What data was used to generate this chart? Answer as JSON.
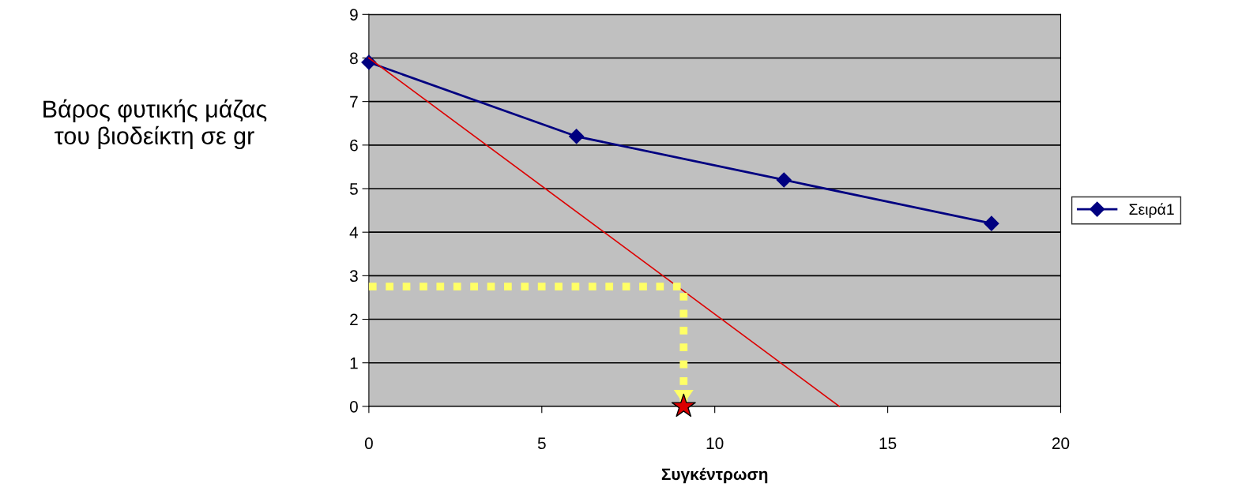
{
  "chart_data": {
    "type": "line",
    "xlabel": "Συγκέντρωση",
    "ylabel": "Βάρος φυτικής μάζας\nτου βιοδείκτη σε gr",
    "x": [
      0,
      6,
      12,
      18
    ],
    "series": [
      {
        "name": "Σειρά1",
        "color": "#000080",
        "values": [
          7.9,
          6.2,
          5.2,
          4.2
        ],
        "marker": "diamond"
      },
      {
        "type": "line",
        "color": "#dd0000",
        "x": [
          0,
          13.6
        ],
        "values": [
          8,
          0
        ],
        "marker": "none"
      },
      {
        "type": "line",
        "color": "#ffff66",
        "x": [
          0,
          9.1,
          9.1
        ],
        "values": [
          2.75,
          2.75,
          0
        ],
        "marker": "none",
        "line_style": "dotted"
      },
      {
        "type": "scatter",
        "color": "#dd0000",
        "x": [
          9.1
        ],
        "values": [
          0
        ],
        "marker": "star"
      }
    ],
    "xlim": [
      0,
      20
    ],
    "xticks": [
      0,
      5,
      10,
      15,
      20
    ],
    "ylim": [
      0,
      9
    ],
    "yticks": [
      0,
      1,
      2,
      3,
      4,
      5,
      6,
      7,
      8,
      9
    ],
    "grid": "y",
    "legend": "right"
  }
}
